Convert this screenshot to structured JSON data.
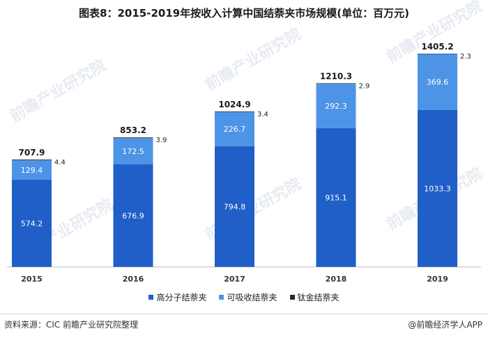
{
  "title": "图表8：2015-2019年按收入计算中国结萘夹市场规模(单位：百万元)",
  "footer": {
    "source": "资料来源：CIC  前瞻产业研究院整理",
    "brand": "@前瞻经济学人APP"
  },
  "watermark": "前瞻产业研究院",
  "colors": {
    "polymer": "#1f5fc7",
    "absorbable": "#4d94e6",
    "titanium": "#2b2b2b",
    "axis": "#bfbfbf"
  },
  "chart_data": {
    "type": "bar",
    "stacked": true,
    "categories": [
      "2015",
      "2016",
      "2017",
      "2018",
      "2019"
    ],
    "series": [
      {
        "name": "高分子结萘夹",
        "values": [
          574.2,
          676.9,
          794.8,
          915.1,
          1033.3
        ],
        "color": "#1f5fc7"
      },
      {
        "name": "可吸收结萘夹",
        "values": [
          129.4,
          172.5,
          226.7,
          292.3,
          369.6
        ],
        "color": "#4d94e6"
      },
      {
        "name": "钛金结萘夹",
        "values": [
          4.4,
          3.9,
          3.4,
          2.9,
          2.3
        ],
        "color": "#2b2b2b"
      }
    ],
    "totals": [
      707.9,
      853.2,
      1024.9,
      1210.3,
      1405.2
    ],
    "legend_position": "bottom",
    "grid": false
  }
}
